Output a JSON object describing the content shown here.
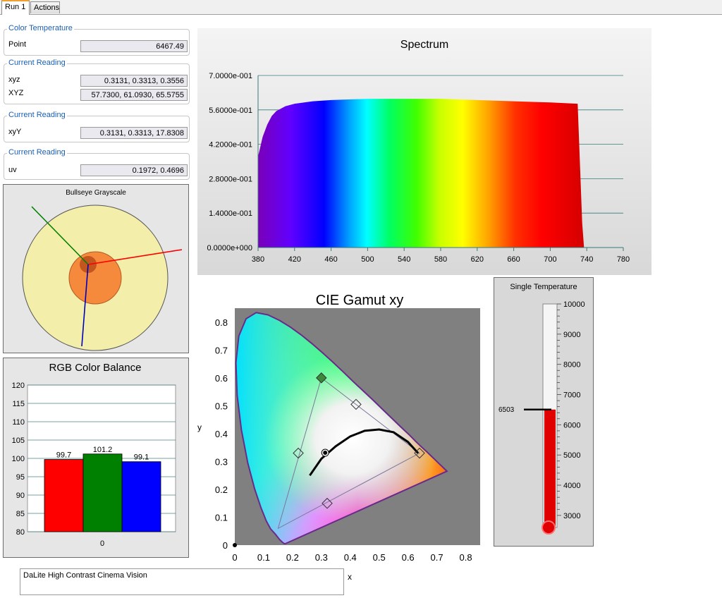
{
  "tabs": [
    {
      "label": "Run 1",
      "active": true
    },
    {
      "label": "Actions",
      "active": false
    }
  ],
  "readings": {
    "color_temperature": {
      "legend": "Color Temperature",
      "point_label": "Point",
      "point_value": "6467.49"
    },
    "xyz_group": {
      "legend": "Current Reading",
      "xyz_label": "xyz",
      "xyz_value": "0.3131, 0.3313, 0.3556",
      "XYZ_label": "XYZ",
      "XYZ_value": "57.7300, 61.0930, 65.5755"
    },
    "xyY_group": {
      "legend": "Current Reading",
      "label": "xyY",
      "value": "0.3131, 0.3313, 17.8308"
    },
    "uv_group": {
      "legend": "Current Reading",
      "label": "uv",
      "value": "0.1972, 0.4696"
    }
  },
  "bullseye": {
    "title": "Bullseye Grayscale",
    "colors": {
      "outer": "#f3eeaa",
      "inner": "#f58a3c",
      "dot": "#c3561e"
    }
  },
  "spectrum": {
    "title": "Spectrum",
    "x_ticks": [
      "380",
      "420",
      "460",
      "500",
      "540",
      "580",
      "620",
      "660",
      "700",
      "740",
      "780"
    ],
    "y_ticks": [
      "0.0000e+000",
      "1.4000e-001",
      "2.8000e-001",
      "4.2000e-001",
      "5.6000e-001",
      "7.0000e-001"
    ],
    "xlim": [
      380,
      780
    ],
    "ylim": [
      0,
      0.7
    ],
    "curve": [
      [
        380,
        0.37
      ],
      [
        385,
        0.45
      ],
      [
        390,
        0.5
      ],
      [
        395,
        0.535
      ],
      [
        400,
        0.555
      ],
      [
        410,
        0.575
      ],
      [
        420,
        0.585
      ],
      [
        440,
        0.595
      ],
      [
        460,
        0.6
      ],
      [
        500,
        0.605
      ],
      [
        540,
        0.605
      ],
      [
        580,
        0.605
      ],
      [
        620,
        0.6
      ],
      [
        660,
        0.595
      ],
      [
        700,
        0.59
      ],
      [
        730,
        0.585
      ],
      [
        735,
        0.1
      ],
      [
        737,
        0.0
      ]
    ]
  },
  "rgb_balance": {
    "title": "RGB Color Balance",
    "y_ticks": [
      "120",
      "115",
      "110",
      "105",
      "100",
      "95",
      "90",
      "85",
      "80"
    ],
    "x_label": "0",
    "ylim": [
      80,
      120
    ],
    "bars": [
      {
        "label": "99.7",
        "value": 99.7,
        "color": "#ff0000"
      },
      {
        "label": "101.2",
        "value": 101.2,
        "color": "#008000"
      },
      {
        "label": "99.1",
        "value": 99.1,
        "color": "#0000ff"
      }
    ]
  },
  "cie": {
    "title": "CIE Gamut xy",
    "x_axis_label": "x",
    "y_axis_label": "y",
    "x_ticks": [
      "0",
      "0.1",
      "0.2",
      "0.3",
      "0.4",
      "0.5",
      "0.6",
      "0.7",
      "0.8"
    ],
    "y_ticks": [
      "0",
      "0.1",
      "0.2",
      "0.3",
      "0.4",
      "0.5",
      "0.6",
      "0.7",
      "0.8"
    ],
    "xlim": [
      0,
      0.85
    ],
    "ylim": [
      0,
      0.85
    ],
    "gamut_triangle": [
      [
        0.64,
        0.33
      ],
      [
        0.3,
        0.6
      ],
      [
        0.15,
        0.06
      ]
    ],
    "markers": [
      [
        0.3,
        0.6
      ],
      [
        0.42,
        0.505
      ],
      [
        0.22,
        0.33
      ],
      [
        0.64,
        0.33
      ],
      [
        0.32,
        0.15
      ]
    ],
    "measured_point": [
      0.3131,
      0.3313
    ],
    "planckian": [
      [
        0.26,
        0.25
      ],
      [
        0.3,
        0.31
      ],
      [
        0.35,
        0.355
      ],
      [
        0.4,
        0.39
      ],
      [
        0.45,
        0.41
      ],
      [
        0.5,
        0.415
      ],
      [
        0.55,
        0.405
      ],
      [
        0.6,
        0.37
      ],
      [
        0.635,
        0.33
      ]
    ]
  },
  "thermometer": {
    "title": "Single Temperature",
    "ticks": [
      "10000",
      "9000",
      "8000",
      "7000",
      "6000",
      "5000",
      "4000",
      "3000"
    ],
    "range": [
      2600,
      10000
    ],
    "value": 6503,
    "value_label": "6503",
    "fill_color": "#e00000"
  },
  "notes": {
    "text": "DaLite High Contrast Cinema Vision"
  }
}
